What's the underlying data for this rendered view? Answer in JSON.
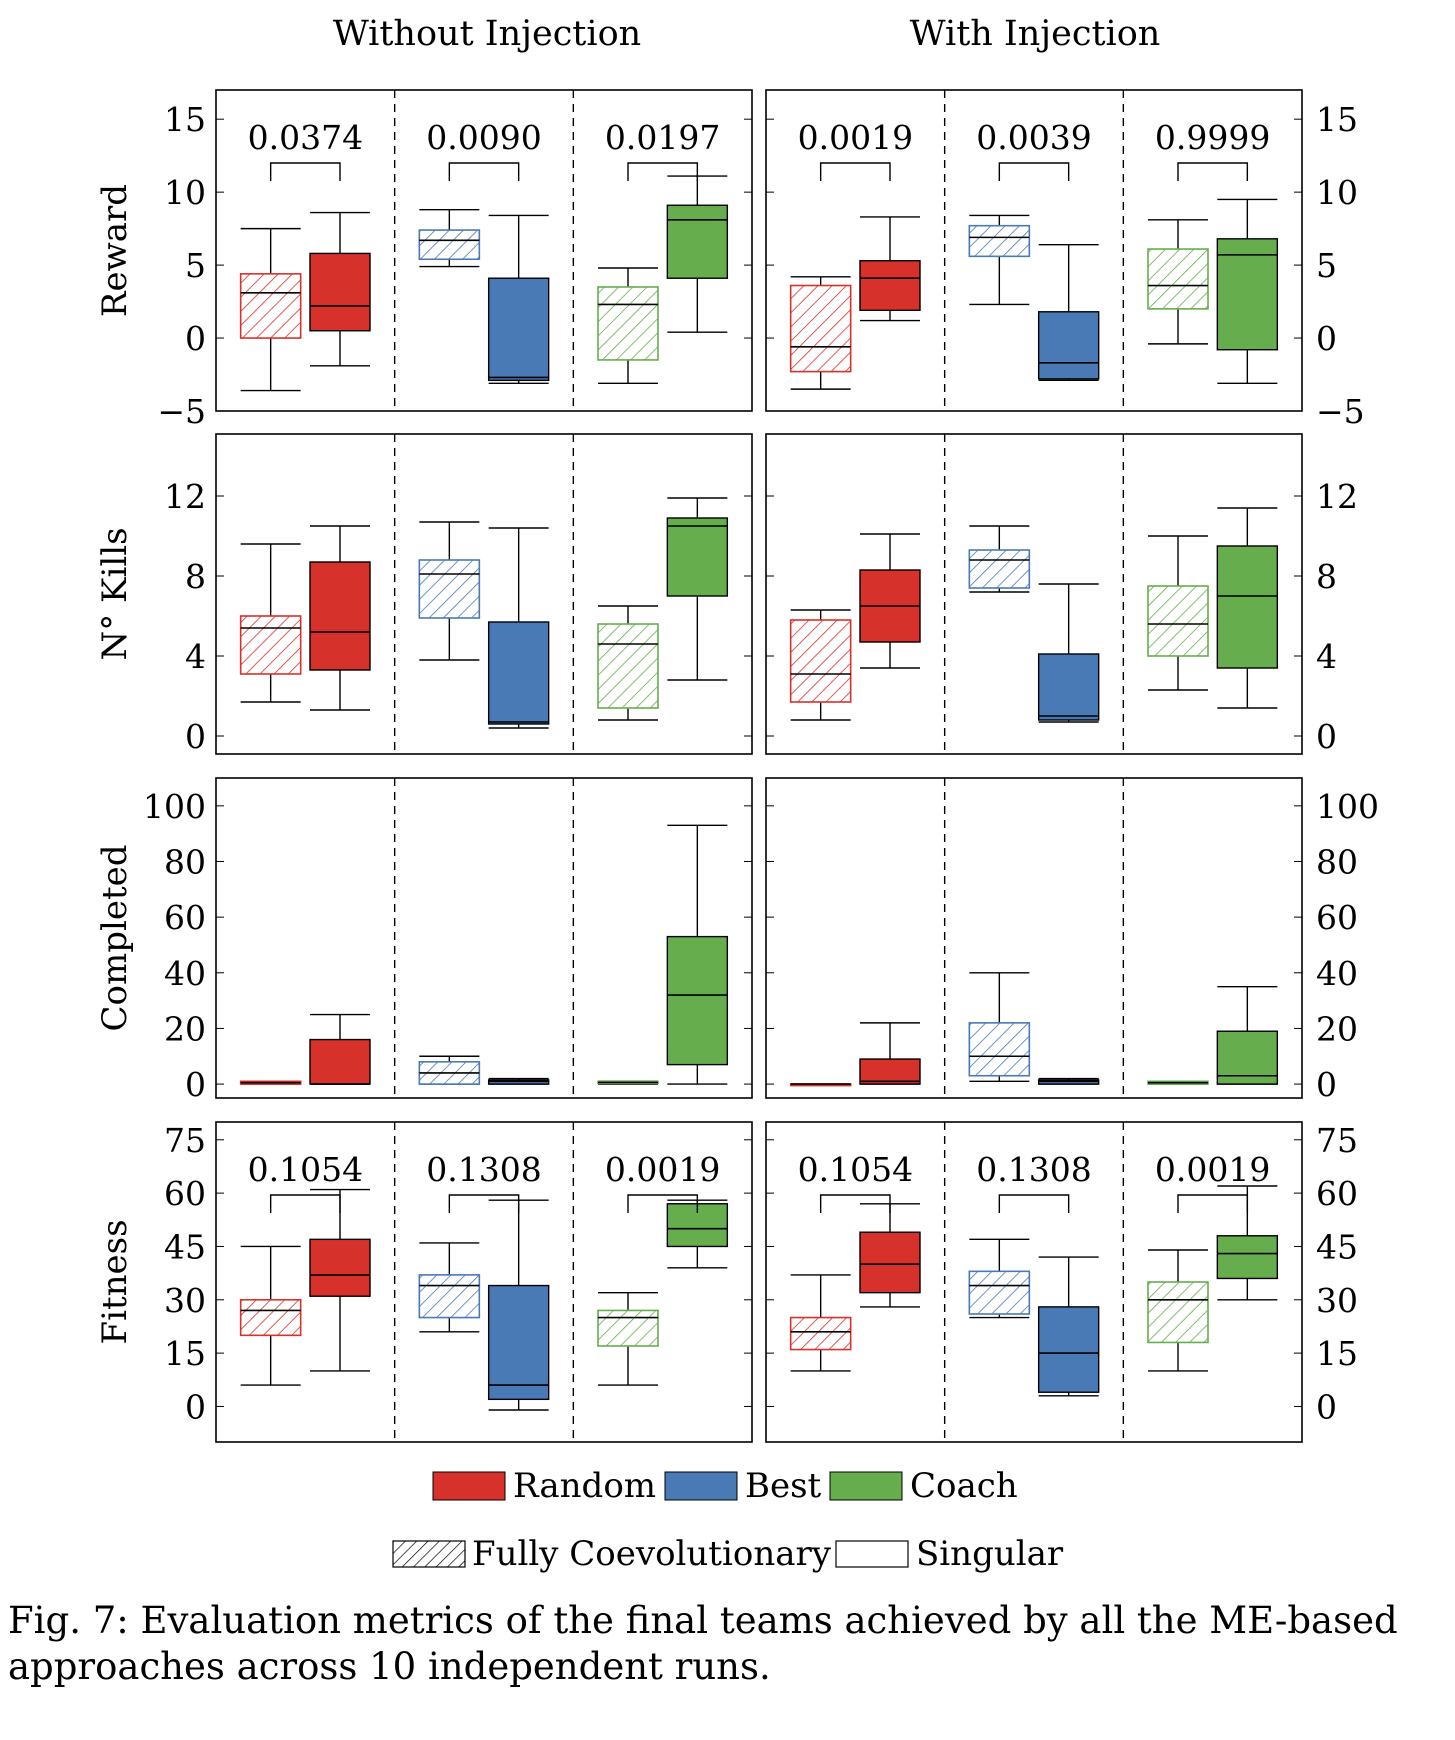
{
  "chart_data": {
    "type": "box",
    "column_titles": [
      "Without Injection",
      "With Injection"
    ],
    "groups": [
      "Random",
      "Best",
      "Coach"
    ],
    "legend": {
      "colors": [
        {
          "label": "Random",
          "color": "#d7312b"
        },
        {
          "label": "Best",
          "color": "#4a7ab6"
        },
        {
          "label": "Coach",
          "color": "#66ad4e"
        }
      ],
      "styles": [
        {
          "label": "Fully Coevolutionary",
          "pattern": "hatched"
        },
        {
          "label": "Singular",
          "pattern": "solid"
        }
      ]
    },
    "rows": [
      {
        "ylabel": "Reward",
        "ylim": [
          -5,
          17
        ],
        "ticks": [
          -5,
          0,
          5,
          10,
          15
        ],
        "tick_labels": [
          "−5",
          "0",
          "5",
          "10",
          "15"
        ],
        "panels": [
          {
            "pvalues": [
              "0.0374",
              "0.0090",
              "0.0197"
            ],
            "boxes": [
              {
                "group": "Random",
                "style": "hatched",
                "min": -3.6,
                "q1": 0.0,
                "median": 3.1,
                "q3": 4.4,
                "max": 7.5
              },
              {
                "group": "Random",
                "style": "solid",
                "min": -1.9,
                "q1": 0.5,
                "median": 2.2,
                "q3": 5.8,
                "max": 8.6
              },
              {
                "group": "Best",
                "style": "hatched",
                "min": 4.9,
                "q1": 5.4,
                "median": 6.7,
                "q3": 7.4,
                "max": 8.8
              },
              {
                "group": "Best",
                "style": "solid",
                "min": -3.1,
                "q1": -2.9,
                "median": -2.7,
                "q3": 4.1,
                "max": 8.4
              },
              {
                "group": "Coach",
                "style": "hatched",
                "min": -3.1,
                "q1": -1.5,
                "median": 2.3,
                "q3": 3.5,
                "max": 4.8
              },
              {
                "group": "Coach",
                "style": "solid",
                "min": 0.4,
                "q1": 4.1,
                "median": 8.1,
                "q3": 9.1,
                "max": 11.1
              }
            ]
          },
          {
            "pvalues": [
              "0.0019",
              "0.0039",
              "0.9999"
            ],
            "boxes": [
              {
                "group": "Random",
                "style": "hatched",
                "min": -3.5,
                "q1": -2.3,
                "median": -0.6,
                "q3": 3.6,
                "max": 4.2
              },
              {
                "group": "Random",
                "style": "solid",
                "min": 1.2,
                "q1": 1.9,
                "median": 4.1,
                "q3": 5.3,
                "max": 8.3
              },
              {
                "group": "Best",
                "style": "hatched",
                "min": 2.3,
                "q1": 5.6,
                "median": 6.9,
                "q3": 7.7,
                "max": 8.4
              },
              {
                "group": "Best",
                "style": "solid",
                "min": -2.9,
                "q1": -2.8,
                "median": -1.7,
                "q3": 1.8,
                "max": 6.4
              },
              {
                "group": "Coach",
                "style": "hatched",
                "min": -0.4,
                "q1": 2.0,
                "median": 3.6,
                "q3": 6.1,
                "max": 8.1
              },
              {
                "group": "Coach",
                "style": "solid",
                "min": -3.1,
                "q1": -0.8,
                "median": 5.7,
                "q3": 6.8,
                "max": 9.5
              }
            ]
          }
        ]
      },
      {
        "ylabel": "N° Kills",
        "ylim": [
          -0.9,
          15.1
        ],
        "ticks": [
          0,
          4,
          8,
          12
        ],
        "tick_labels": [
          "0",
          "4",
          "8",
          "12"
        ],
        "panels": [
          {
            "pvalues": [],
            "boxes": [
              {
                "group": "Random",
                "style": "hatched",
                "min": 1.7,
                "q1": 3.1,
                "median": 5.4,
                "q3": 6.0,
                "max": 9.6
              },
              {
                "group": "Random",
                "style": "solid",
                "min": 1.3,
                "q1": 3.3,
                "median": 5.2,
                "q3": 8.7,
                "max": 10.5
              },
              {
                "group": "Best",
                "style": "hatched",
                "min": 3.8,
                "q1": 5.9,
                "median": 8.1,
                "q3": 8.8,
                "max": 10.7
              },
              {
                "group": "Best",
                "style": "solid",
                "min": 0.4,
                "q1": 0.6,
                "median": 0.7,
                "q3": 5.7,
                "max": 10.4
              },
              {
                "group": "Coach",
                "style": "hatched",
                "min": 0.8,
                "q1": 1.4,
                "median": 4.6,
                "q3": 5.6,
                "max": 6.5
              },
              {
                "group": "Coach",
                "style": "solid",
                "min": 2.8,
                "q1": 7.0,
                "median": 10.5,
                "q3": 10.9,
                "max": 11.9
              }
            ]
          },
          {
            "pvalues": [],
            "boxes": [
              {
                "group": "Random",
                "style": "hatched",
                "min": 0.8,
                "q1": 1.7,
                "median": 3.1,
                "q3": 5.8,
                "max": 6.3
              },
              {
                "group": "Random",
                "style": "solid",
                "min": 3.4,
                "q1": 4.7,
                "median": 6.5,
                "q3": 8.3,
                "max": 10.1
              },
              {
                "group": "Best",
                "style": "hatched",
                "min": 7.2,
                "q1": 7.4,
                "median": 8.8,
                "q3": 9.3,
                "max": 10.5
              },
              {
                "group": "Best",
                "style": "solid",
                "min": 0.7,
                "q1": 0.8,
                "median": 1.0,
                "q3": 4.1,
                "max": 7.6
              },
              {
                "group": "Coach",
                "style": "hatched",
                "min": 2.3,
                "q1": 4.0,
                "median": 5.6,
                "q3": 7.5,
                "max": 10.0
              },
              {
                "group": "Coach",
                "style": "solid",
                "min": 1.4,
                "q1": 3.4,
                "median": 7.0,
                "q3": 9.5,
                "max": 11.4
              }
            ]
          }
        ]
      },
      {
        "ylabel": "Completed",
        "ylim": [
          -5,
          110
        ],
        "ticks": [
          0,
          20,
          40,
          60,
          80,
          100
        ],
        "tick_labels": [
          "0",
          "20",
          "40",
          "60",
          "80",
          "100"
        ],
        "panels": [
          {
            "pvalues": [],
            "boxes": [
              {
                "group": "Random",
                "style": "hatched",
                "min": 0.0,
                "q1": 0.0,
                "median": 0.5,
                "q3": 1.0,
                "max": 1.0
              },
              {
                "group": "Random",
                "style": "solid",
                "min": 0.0,
                "q1": 0.0,
                "median": 0.0,
                "q3": 16.0,
                "max": 25.0
              },
              {
                "group": "Best",
                "style": "hatched",
                "min": 0.0,
                "q1": 0.0,
                "median": 4.0,
                "q3": 8.0,
                "max": 10.0
              },
              {
                "group": "Best",
                "style": "solid",
                "min": 0.0,
                "q1": 0.0,
                "median": 1.0,
                "q3": 1.5,
                "max": 2.0
              },
              {
                "group": "Coach",
                "style": "hatched",
                "min": 0.0,
                "q1": 0.3,
                "median": 0.6,
                "q3": 0.9,
                "max": 1.0
              },
              {
                "group": "Coach",
                "style": "solid",
                "min": 0.0,
                "q1": 7.0,
                "median": 32.0,
                "q3": 53.0,
                "max": 93.0
              }
            ]
          },
          {
            "pvalues": [],
            "boxes": [
              {
                "group": "Random",
                "style": "hatched",
                "min": 0.0,
                "q1": 0.0,
                "median": 0.0,
                "q3": 0.0,
                "max": 0.0
              },
              {
                "group": "Random",
                "style": "solid",
                "min": 0.0,
                "q1": 0.0,
                "median": 1.0,
                "q3": 9.0,
                "max": 22.0
              },
              {
                "group": "Best",
                "style": "hatched",
                "min": 1.0,
                "q1": 3.0,
                "median": 10.0,
                "q3": 22.0,
                "max": 40.0
              },
              {
                "group": "Best",
                "style": "solid",
                "min": 0.0,
                "q1": 0.0,
                "median": 1.0,
                "q3": 1.5,
                "max": 2.0
              },
              {
                "group": "Coach",
                "style": "hatched",
                "min": 0.0,
                "q1": 0.0,
                "median": 0.5,
                "q3": 1.0,
                "max": 1.0
              },
              {
                "group": "Coach",
                "style": "solid",
                "min": 0.0,
                "q1": 0.0,
                "median": 3.0,
                "q3": 19.0,
                "max": 35.0
              }
            ]
          }
        ]
      },
      {
        "ylabel": "Fitness",
        "ylim": [
          -10,
          80
        ],
        "ticks": [
          0,
          15,
          30,
          45,
          60,
          75
        ],
        "tick_labels": [
          "0",
          "15",
          "30",
          "45",
          "60",
          "75"
        ],
        "panels": [
          {
            "pvalues": [
              "0.1054",
              "0.1308",
              "0.0019"
            ],
            "boxes": [
              {
                "group": "Random",
                "style": "hatched",
                "min": 6.0,
                "q1": 20.0,
                "median": 27.0,
                "q3": 30.0,
                "max": 45.0
              },
              {
                "group": "Random",
                "style": "solid",
                "min": 10.0,
                "q1": 31.0,
                "median": 37.0,
                "q3": 47.0,
                "max": 61.0
              },
              {
                "group": "Best",
                "style": "hatched",
                "min": 21.0,
                "q1": 25.0,
                "median": 34.0,
                "q3": 37.0,
                "max": 46.0
              },
              {
                "group": "Best",
                "style": "solid",
                "min": -1.0,
                "q1": 2.0,
                "median": 6.0,
                "q3": 34.0,
                "max": 58.0
              },
              {
                "group": "Coach",
                "style": "hatched",
                "min": 6.0,
                "q1": 17.0,
                "median": 25.0,
                "q3": 27.0,
                "max": 32.0
              },
              {
                "group": "Coach",
                "style": "solid",
                "min": 39.0,
                "q1": 45.0,
                "median": 50.0,
                "q3": 57.0,
                "max": 58.0
              }
            ]
          },
          {
            "pvalues": [
              "0.1054",
              "0.1308",
              "0.0019"
            ],
            "boxes": [
              {
                "group": "Random",
                "style": "hatched",
                "min": 10.0,
                "q1": 16.0,
                "median": 21.0,
                "q3": 25.0,
                "max": 37.0
              },
              {
                "group": "Random",
                "style": "solid",
                "min": 28.0,
                "q1": 32.0,
                "median": 40.0,
                "q3": 49.0,
                "max": 57.0
              },
              {
                "group": "Best",
                "style": "hatched",
                "min": 25.0,
                "q1": 26.0,
                "median": 34.0,
                "q3": 38.0,
                "max": 47.0
              },
              {
                "group": "Best",
                "style": "solid",
                "min": 3.0,
                "q1": 4.0,
                "median": 15.0,
                "q3": 28.0,
                "max": 42.0
              },
              {
                "group": "Coach",
                "style": "hatched",
                "min": 10.0,
                "q1": 18.0,
                "median": 30.0,
                "q3": 35.0,
                "max": 44.0
              },
              {
                "group": "Coach",
                "style": "solid",
                "min": 30.0,
                "q1": 36.0,
                "median": 43.0,
                "q3": 48.0,
                "max": 62.0
              }
            ]
          }
        ]
      }
    ]
  },
  "caption": "Fig. 7: Evaluation metrics of the final teams achieved by all the ME-based approaches across 10 independent runs."
}
